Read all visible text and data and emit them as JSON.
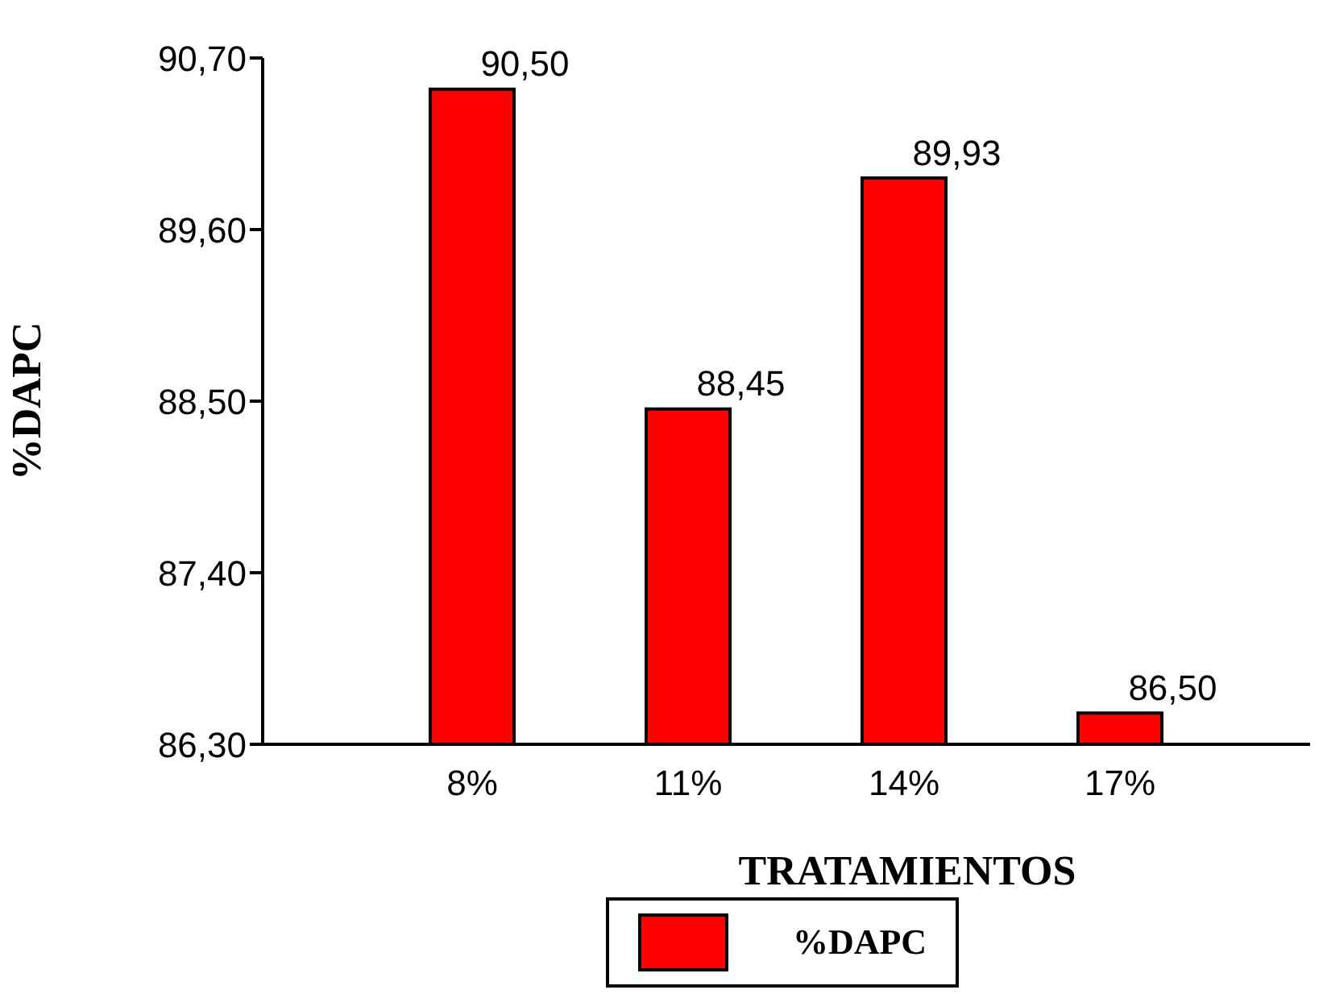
{
  "chart_data": {
    "type": "bar",
    "xlabel": "TRATAMIENTOS",
    "ylabel": "%DAPC",
    "categories": [
      "8%",
      "11%",
      "14%",
      "17%"
    ],
    "series": [
      {
        "name": "%DAPC",
        "color": "#ff0000",
        "values": [
          90.5,
          88.45,
          89.93,
          86.5
        ],
        "value_labels": [
          "90,50",
          "88,45",
          "89,93",
          "86,50"
        ]
      }
    ],
    "ylim": [
      86.3,
      90.7
    ],
    "yticks": [
      {
        "value": 86.3,
        "label": "86,30"
      },
      {
        "value": 87.4,
        "label": "87,40"
      },
      {
        "value": 88.5,
        "label": "88,50"
      },
      {
        "value": 89.6,
        "label": "89,60"
      },
      {
        "value": 90.7,
        "label": "90,70"
      }
    ],
    "grid": false,
    "legend": "bottom"
  }
}
